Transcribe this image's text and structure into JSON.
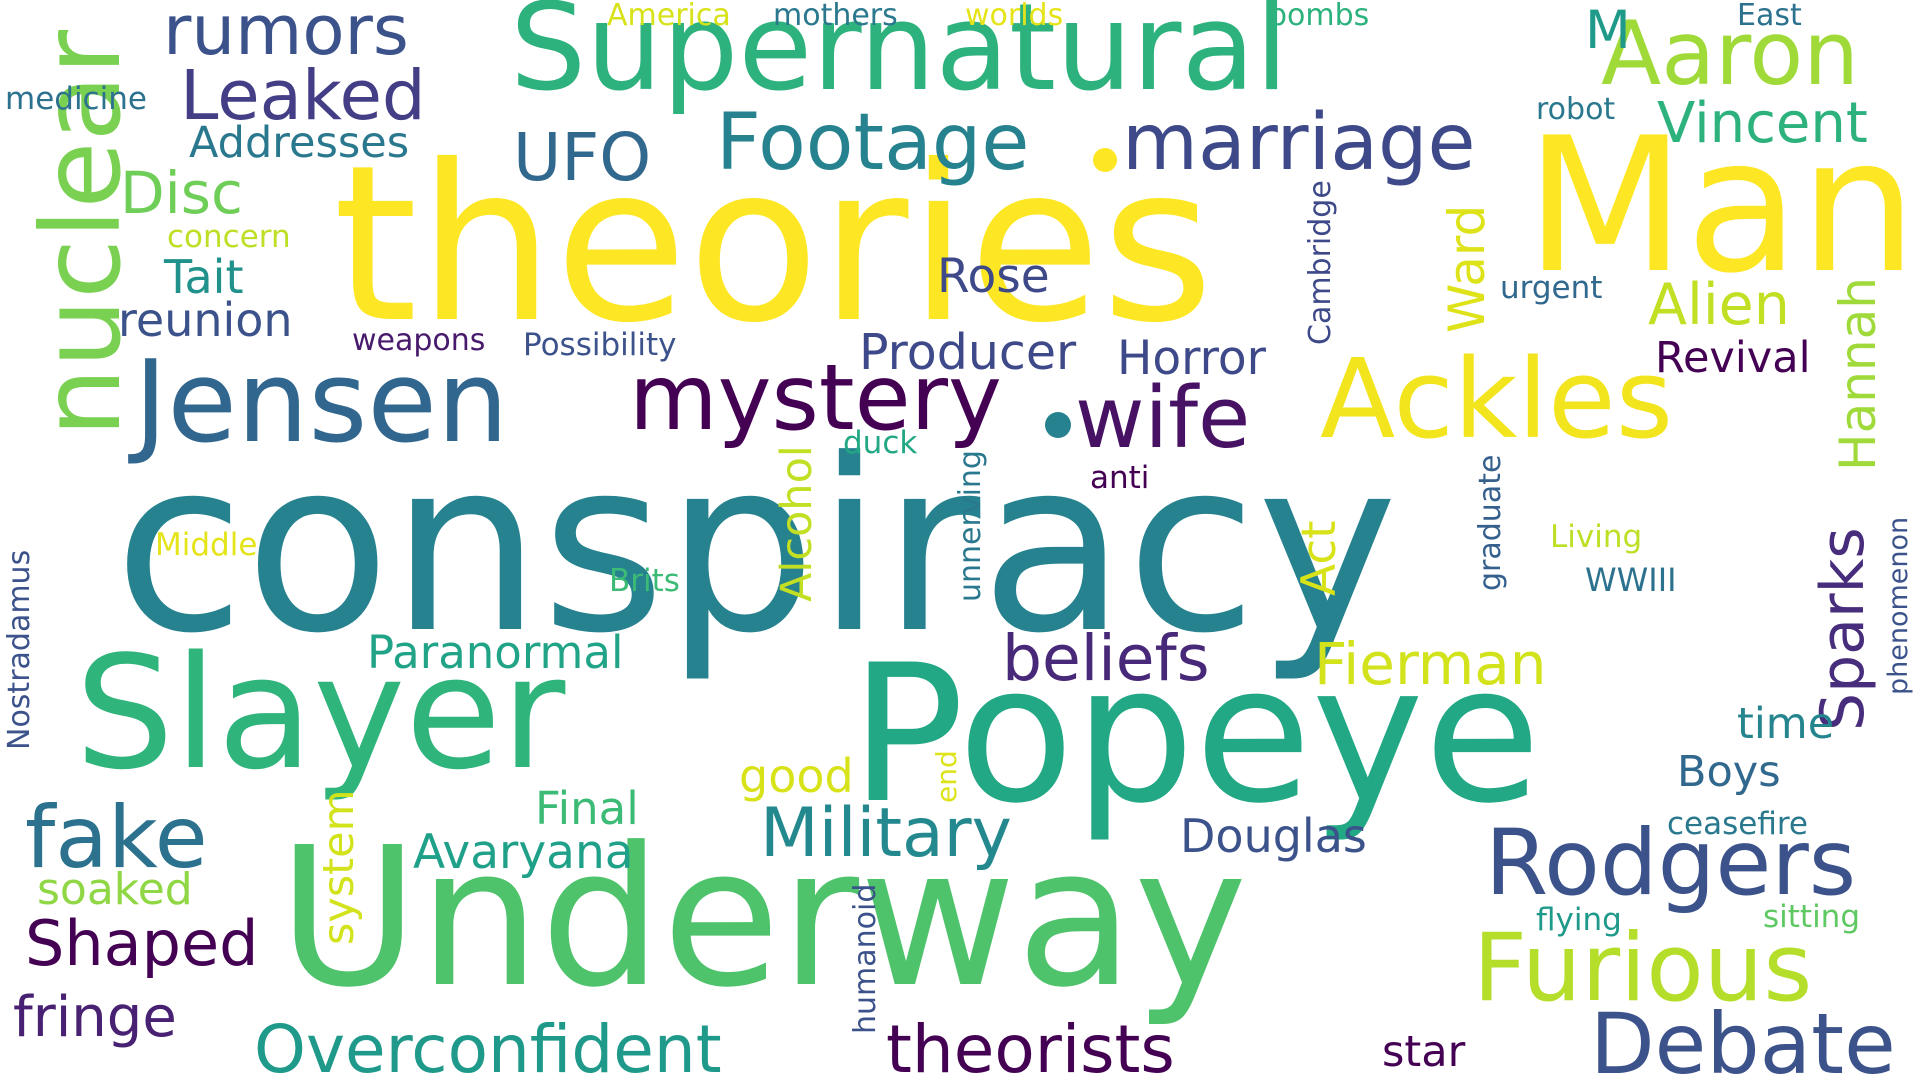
{
  "colors": {
    "background": "#ffffff",
    "palette": {
      "dark_purple": "#440154",
      "purple": "#482878",
      "indigo": "#3e4a89",
      "blue": "#31688e",
      "teal": "#26828e",
      "teal_green": "#1f9e89",
      "green": "#35b779",
      "light_green": "#6ece58",
      "lime": "#b5de2b",
      "yellow": "#fde725"
    }
  },
  "words": [
    {
      "text": "conspiracy",
      "color": "#26828e"
    },
    {
      "text": "theories",
      "color": "#fde725"
    },
    {
      "text": "Underway",
      "color": "#4ec36b"
    },
    {
      "text": "Popeye",
      "color": "#22a884"
    },
    {
      "text": "Slayer",
      "color": "#2fb47c"
    },
    {
      "text": "Man",
      "color": "#fde725"
    },
    {
      "text": "Supernatural",
      "color": "#2db27d"
    },
    {
      "text": "Jensen",
      "color": "#31668e"
    },
    {
      "text": "Ackles",
      "color": "#f2e51d"
    },
    {
      "text": "nuclear",
      "color": "#7ad151"
    },
    {
      "text": "mystery",
      "color": "#440154"
    },
    {
      "text": "wife",
      "color": "#471164"
    },
    {
      "text": "Furious",
      "color": "#b5de2b"
    },
    {
      "text": "Rodgers",
      "color": "#3b528b"
    },
    {
      "text": "Debate",
      "color": "#3b528b"
    },
    {
      "text": "Aaron",
      "color": "#a0da39"
    },
    {
      "text": "marriage",
      "color": "#3e4989"
    },
    {
      "text": "Footage",
      "color": "#26828e"
    },
    {
      "text": "Overconfident",
      "color": "#1f9a8a"
    },
    {
      "text": "theorists",
      "color": "#440154"
    },
    {
      "text": "fake",
      "color": "#2c728e"
    },
    {
      "text": "Military",
      "color": "#23898e"
    },
    {
      "text": "Sparks",
      "color": "#472d7b"
    },
    {
      "text": "Leaked",
      "color": "#433e85"
    },
    {
      "text": "rumors",
      "color": "#3b528b"
    },
    {
      "text": "Shaped",
      "color": "#440154"
    },
    {
      "text": "fringe",
      "color": "#482173"
    },
    {
      "text": "beliefs",
      "color": "#482878"
    },
    {
      "text": "Fierman",
      "color": "#d2e21b"
    },
    {
      "text": "Alien",
      "color": "#c2df23"
    },
    {
      "text": "Hannah",
      "color": "#9fda3a"
    },
    {
      "text": "Vincent",
      "color": "#2db27d"
    },
    {
      "text": "UFO",
      "color": "#31688e"
    },
    {
      "text": "Disc",
      "color": "#6ece58"
    },
    {
      "text": "reunion",
      "color": "#3b528b"
    },
    {
      "text": "Tait",
      "color": "#21918c"
    },
    {
      "text": "Producer",
      "color": "#3e4989"
    },
    {
      "text": "Horror",
      "color": "#3e4989"
    },
    {
      "text": "Ward",
      "color": "#dde318"
    },
    {
      "text": "Rose",
      "color": "#3e4989"
    },
    {
      "text": "Revival",
      "color": "#440154"
    },
    {
      "text": "Paranormal",
      "color": "#20a386"
    },
    {
      "text": "Avaryana",
      "color": "#1fa088"
    },
    {
      "text": "Douglas",
      "color": "#3b528b"
    },
    {
      "text": "Final",
      "color": "#3bbb75"
    },
    {
      "text": "Alcohol",
      "color": "#c2df23"
    },
    {
      "text": "Act",
      "color": "#d8e219"
    },
    {
      "text": "good",
      "color": "#d8e219"
    },
    {
      "text": "system",
      "color": "#d2e21b"
    },
    {
      "text": "soaked",
      "color": "#8fd744"
    },
    {
      "text": "Boys",
      "color": "#31688e"
    },
    {
      "text": "time",
      "color": "#25858e"
    },
    {
      "text": "star",
      "color": "#440154"
    },
    {
      "text": "ceasefire",
      "color": "#2a788e"
    },
    {
      "text": "flying",
      "color": "#1f9a8a"
    },
    {
      "text": "sitting",
      "color": "#5ec962"
    },
    {
      "text": "Addresses",
      "color": "#2a788e"
    },
    {
      "text": "concern",
      "color": "#bddf26"
    },
    {
      "text": "medicine",
      "color": "#2c728e"
    },
    {
      "text": "weapons",
      "color": "#481a6c"
    },
    {
      "text": "Possibility",
      "color": "#3b528b"
    },
    {
      "text": "duck",
      "color": "#22a884"
    },
    {
      "text": "anti",
      "color": "#440154"
    },
    {
      "text": "Middle",
      "color": "#e5e419"
    },
    {
      "text": "Brits",
      "color": "#3bbb75"
    },
    {
      "text": "unnerving",
      "color": "#2a788e"
    },
    {
      "text": "graduate",
      "color": "#35608d"
    },
    {
      "text": "Living",
      "color": "#bddf26"
    },
    {
      "text": "WWIII",
      "color": "#2c728e"
    },
    {
      "text": "phenomenon",
      "color": "#3b528b"
    },
    {
      "text": "Nostradamus",
      "color": "#3b528b"
    },
    {
      "text": "Cambridge",
      "color": "#3e4989"
    },
    {
      "text": "urgent",
      "color": "#31688e"
    },
    {
      "text": "humanoid",
      "color": "#3b528b"
    },
    {
      "text": "end",
      "color": "#dde318"
    },
    {
      "text": "America",
      "color": "#d8e219"
    },
    {
      "text": "mothers",
      "color": "#2a788e"
    },
    {
      "text": "worlds",
      "color": "#e5e419"
    },
    {
      "text": "bombs",
      "color": "#2db27d"
    },
    {
      "text": "East",
      "color": "#2c728e"
    },
    {
      "text": "robot",
      "color": "#2a788e"
    },
    {
      "text": "M",
      "color": "#1f9a8a"
    }
  ]
}
